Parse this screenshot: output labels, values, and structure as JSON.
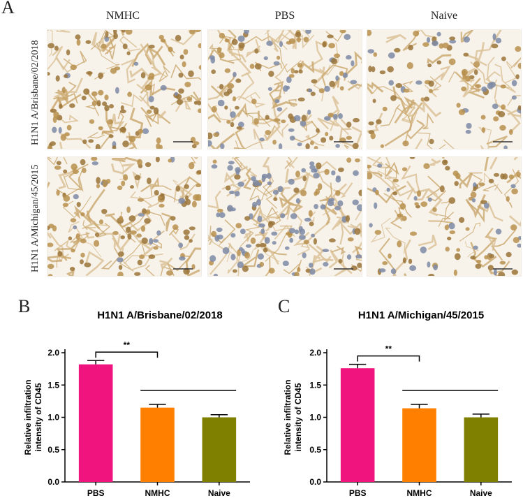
{
  "figure": {
    "panel_a": {
      "letter": "A",
      "columns": [
        "NMHC",
        "PBS",
        "Naive"
      ],
      "rows": [
        "H1N1 A/Brisbane/02/2018",
        "H1N1 A/Michigan/45/2015"
      ]
    },
    "panel_b_letter": "B",
    "panel_c_letter": "C"
  },
  "chart_data": [
    {
      "type": "bar",
      "title": "H1N1 A/Brisbane/02/2018",
      "ylabel": "Relative infiltration intensity of CD45",
      "categories": [
        "PBS",
        "NMHC",
        "Naive"
      ],
      "values": [
        1.82,
        1.15,
        1.0
      ],
      "errors": [
        0.06,
        0.05,
        0.04
      ],
      "colors": [
        "#f0147e",
        "#ff8000",
        "#808000"
      ],
      "ylim": [
        0,
        2.0
      ],
      "yticks": [
        "0.0",
        "0.5",
        "1.0",
        "1.5",
        "2.0"
      ],
      "significance": "**"
    },
    {
      "type": "bar",
      "title": "H1N1 A/Michigan/45/2015",
      "ylabel": "Relative infiltration intensity of CD45",
      "categories": [
        "PBS",
        "NMHC",
        "Naive"
      ],
      "values": [
        1.76,
        1.14,
        1.0
      ],
      "errors": [
        0.06,
        0.06,
        0.05
      ],
      "colors": [
        "#f0147e",
        "#ff8000",
        "#808000"
      ],
      "ylim": [
        0,
        2.0
      ],
      "yticks": [
        "0.0",
        "0.5",
        "1.0",
        "1.5",
        "2.0"
      ],
      "significance": "**"
    }
  ]
}
